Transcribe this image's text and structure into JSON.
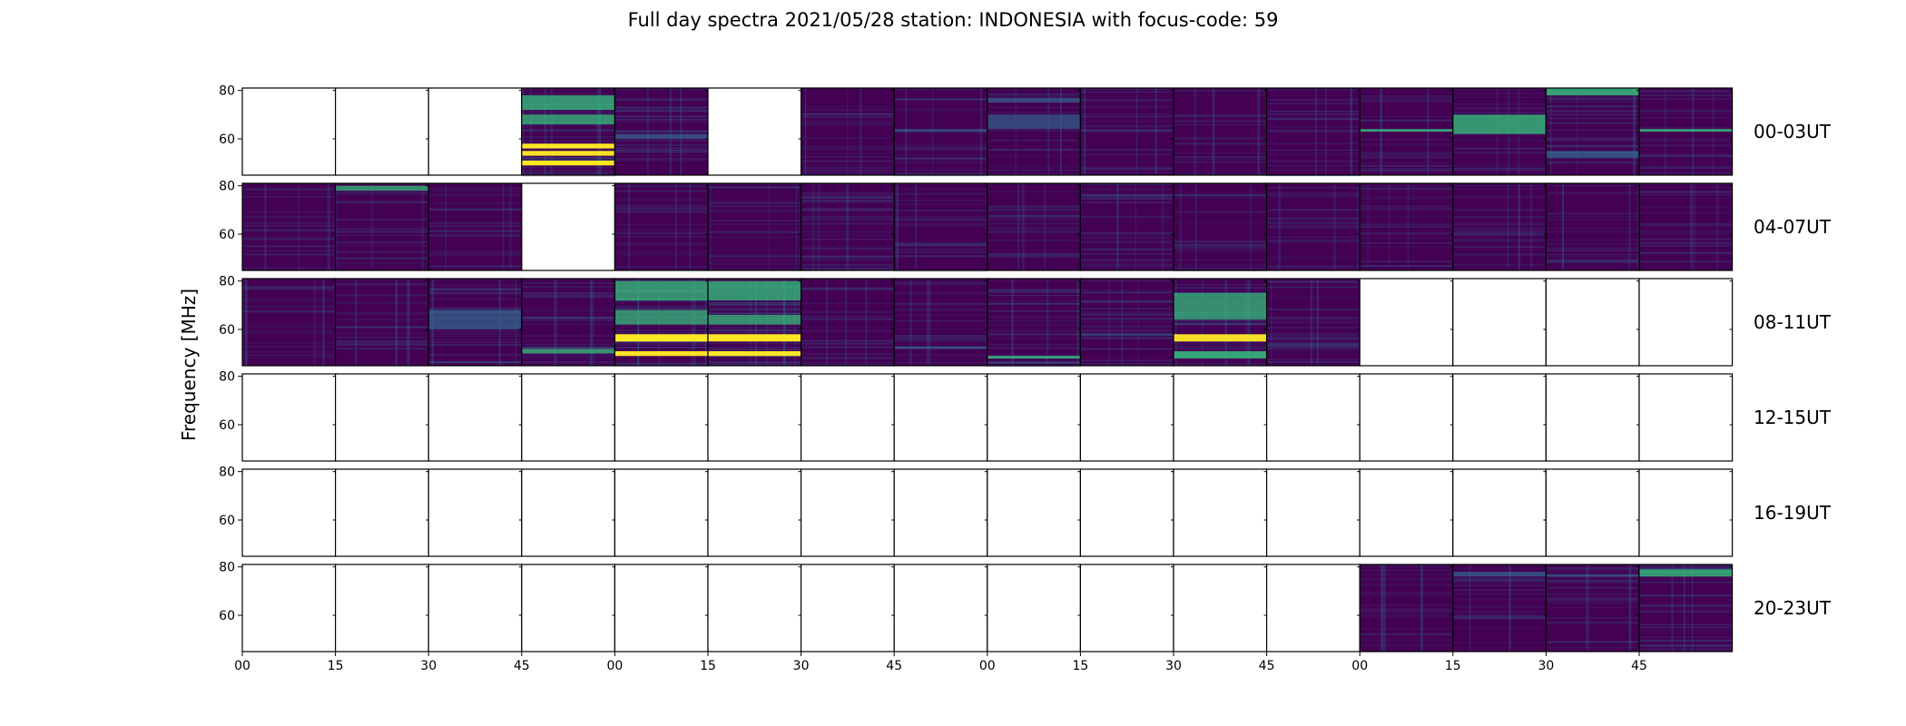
{
  "chart_data": {
    "type": "heatmap",
    "title": "Full day spectra 2021/05/28 station: INDONESIA with focus-code: 59",
    "ylabel": "Frequency [MHz]",
    "xlabel": "",
    "x_tick_labels": [
      "00",
      "15",
      "30",
      "45",
      "00",
      "15",
      "30",
      "45",
      "00",
      "15",
      "30",
      "45",
      "00",
      "15",
      "30",
      "45"
    ],
    "y_tick_labels": [
      "80",
      "60"
    ],
    "ylim": [
      45,
      81
    ],
    "colormap": "viridis",
    "colors": {
      "background": "#440154",
      "mid": "#31688e",
      "bright": "#35b779",
      "peak": "#fde725"
    },
    "rows": [
      {
        "label": "00-03UT",
        "panels": [
          {
            "status": "empty"
          },
          {
            "status": "empty"
          },
          {
            "status": "empty"
          },
          {
            "status": "data",
            "activity": "strong",
            "bands": [
              [
                72,
                78,
                0.55
              ],
              [
                66,
                70,
                0.5
              ],
              [
                56,
                58,
                1.0
              ],
              [
                53,
                55,
                0.95
              ],
              [
                49,
                51,
                1.0
              ]
            ]
          },
          {
            "status": "data",
            "activity": "moderate",
            "bands": [
              [
                60,
                62,
                0.35
              ]
            ]
          },
          {
            "status": "empty"
          },
          {
            "status": "data",
            "activity": "low",
            "bands": []
          },
          {
            "status": "data",
            "activity": "low",
            "bands": [
              [
                63,
                64,
                0.3
              ]
            ]
          },
          {
            "status": "data",
            "activity": "low",
            "bands": [
              [
                75,
                77,
                0.3
              ],
              [
                64,
                70,
                0.2
              ]
            ]
          },
          {
            "status": "data",
            "activity": "low",
            "bands": []
          },
          {
            "status": "data",
            "activity": "low",
            "bands": []
          },
          {
            "status": "data",
            "activity": "low",
            "bands": []
          },
          {
            "status": "data",
            "activity": "low",
            "bands": [
              [
                63,
                64,
                0.8
              ]
            ]
          },
          {
            "status": "data",
            "activity": "low",
            "bands": [
              [
                62,
                70,
                0.6
              ]
            ]
          },
          {
            "status": "data",
            "activity": "moderate",
            "bands": [
              [
                78,
                81,
                0.7
              ],
              [
                52,
                55,
                0.4
              ]
            ]
          },
          {
            "status": "data",
            "activity": "low",
            "bands": [
              [
                63,
                64,
                0.8
              ]
            ]
          }
        ]
      },
      {
        "label": "04-07UT",
        "panels": [
          {
            "status": "data",
            "activity": "low",
            "bands": []
          },
          {
            "status": "data",
            "activity": "low",
            "bands": [
              [
                78,
                80,
                0.5
              ]
            ]
          },
          {
            "status": "data",
            "activity": "low",
            "bands": []
          },
          {
            "status": "empty"
          },
          {
            "status": "data",
            "activity": "low",
            "bands": []
          },
          {
            "status": "data",
            "activity": "low",
            "bands": []
          },
          {
            "status": "data",
            "activity": "moderate",
            "bands": []
          },
          {
            "status": "data",
            "activity": "low",
            "bands": []
          },
          {
            "status": "data",
            "activity": "low",
            "bands": []
          },
          {
            "status": "data",
            "activity": "moderate",
            "bands": []
          },
          {
            "status": "data",
            "activity": "low",
            "bands": []
          },
          {
            "status": "data",
            "activity": "low",
            "bands": []
          },
          {
            "status": "data",
            "activity": "low",
            "bands": []
          },
          {
            "status": "data",
            "activity": "low",
            "bands": []
          },
          {
            "status": "data",
            "activity": "low",
            "bands": []
          },
          {
            "status": "data",
            "activity": "low",
            "bands": []
          }
        ]
      },
      {
        "label": "08-11UT",
        "panels": [
          {
            "status": "data",
            "activity": "low",
            "bands": []
          },
          {
            "status": "data",
            "activity": "low",
            "bands": []
          },
          {
            "status": "data",
            "activity": "moderate",
            "bands": [
              [
                60,
                68,
                0.3
              ]
            ]
          },
          {
            "status": "data",
            "activity": "moderate",
            "bands": [
              [
                50,
                52,
                0.5
              ]
            ]
          },
          {
            "status": "data",
            "activity": "strong",
            "bands": [
              [
                72,
                80,
                0.5
              ],
              [
                62,
                68,
                0.45
              ],
              [
                55,
                58,
                1.0
              ],
              [
                49,
                51,
                0.95
              ]
            ]
          },
          {
            "status": "data",
            "activity": "strong",
            "bands": [
              [
                72,
                80,
                0.55
              ],
              [
                62,
                66,
                0.5
              ],
              [
                55,
                58,
                1.0
              ],
              [
                49,
                51,
                1.0
              ]
            ]
          },
          {
            "status": "data",
            "activity": "low",
            "bands": []
          },
          {
            "status": "data",
            "activity": "low",
            "bands": [
              [
                52,
                53,
                0.4
              ]
            ]
          },
          {
            "status": "data",
            "activity": "moderate",
            "bands": [
              [
                48,
                49,
                0.8
              ]
            ]
          },
          {
            "status": "data",
            "activity": "moderate",
            "bands": []
          },
          {
            "status": "data",
            "activity": "strong",
            "bands": [
              [
                64,
                75,
                0.45
              ],
              [
                55,
                58,
                0.9
              ],
              [
                48,
                51,
                0.75
              ]
            ]
          },
          {
            "status": "data",
            "activity": "moderate",
            "bands": []
          },
          {
            "status": "empty"
          },
          {
            "status": "empty"
          },
          {
            "status": "empty"
          },
          {
            "status": "empty"
          }
        ]
      },
      {
        "label": "12-15UT",
        "panels": [
          {
            "status": "empty"
          },
          {
            "status": "empty"
          },
          {
            "status": "empty"
          },
          {
            "status": "empty"
          },
          {
            "status": "empty"
          },
          {
            "status": "empty"
          },
          {
            "status": "empty"
          },
          {
            "status": "empty"
          },
          {
            "status": "empty"
          },
          {
            "status": "empty"
          },
          {
            "status": "empty"
          },
          {
            "status": "empty"
          },
          {
            "status": "empty"
          },
          {
            "status": "empty"
          },
          {
            "status": "empty"
          },
          {
            "status": "empty"
          }
        ]
      },
      {
        "label": "16-19UT",
        "panels": [
          {
            "status": "empty"
          },
          {
            "status": "empty"
          },
          {
            "status": "empty"
          },
          {
            "status": "empty"
          },
          {
            "status": "empty"
          },
          {
            "status": "empty"
          },
          {
            "status": "empty"
          },
          {
            "status": "empty"
          },
          {
            "status": "empty"
          },
          {
            "status": "empty"
          },
          {
            "status": "empty"
          },
          {
            "status": "empty"
          },
          {
            "status": "empty"
          },
          {
            "status": "empty"
          },
          {
            "status": "empty"
          },
          {
            "status": "empty"
          }
        ]
      },
      {
        "label": "20-23UT",
        "panels": [
          {
            "status": "empty"
          },
          {
            "status": "empty"
          },
          {
            "status": "empty"
          },
          {
            "status": "empty"
          },
          {
            "status": "empty"
          },
          {
            "status": "empty"
          },
          {
            "status": "empty"
          },
          {
            "status": "empty"
          },
          {
            "status": "empty"
          },
          {
            "status": "empty"
          },
          {
            "status": "empty"
          },
          {
            "status": "empty"
          },
          {
            "status": "data",
            "activity": "low",
            "bands": []
          },
          {
            "status": "data",
            "activity": "low",
            "bands": [
              [
                76,
                78,
                0.35
              ]
            ]
          },
          {
            "status": "data",
            "activity": "low",
            "bands": [
              [
                76,
                77,
                0.3
              ]
            ]
          },
          {
            "status": "data",
            "activity": "moderate",
            "bands": [
              [
                76,
                79,
                0.6
              ]
            ]
          }
        ]
      }
    ]
  }
}
